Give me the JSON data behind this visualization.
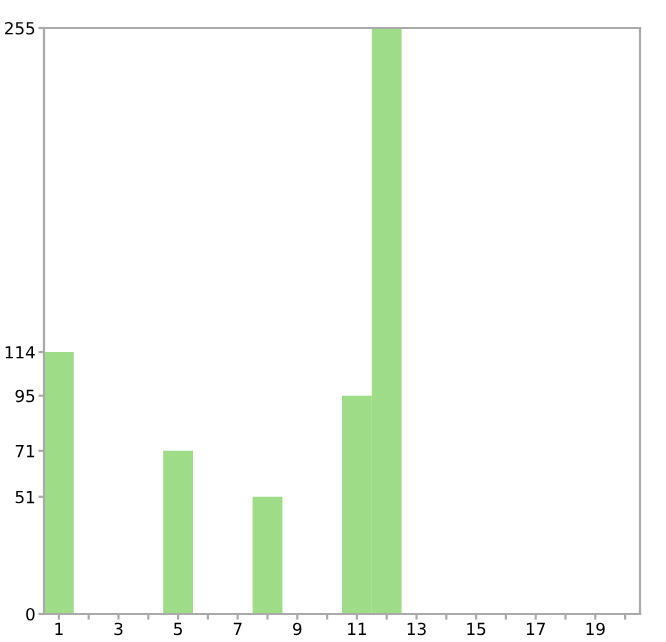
{
  "chart_data": {
    "type": "bar",
    "categories": [
      "1",
      null,
      "3",
      null,
      "5",
      null,
      "7",
      null,
      "9",
      null,
      "11",
      null,
      "13",
      null,
      "15",
      null,
      "17",
      null,
      "19",
      null
    ],
    "values": [
      114,
      0,
      0,
      0,
      71,
      0,
      0,
      51,
      0,
      0,
      95,
      255,
      0,
      0,
      0,
      0,
      0,
      0,
      0,
      0
    ],
    "color": "#9edc87",
    "ylim": [
      0,
      255
    ],
    "yticks": [
      0,
      51,
      71,
      95,
      114,
      255
    ],
    "grid": false
  }
}
